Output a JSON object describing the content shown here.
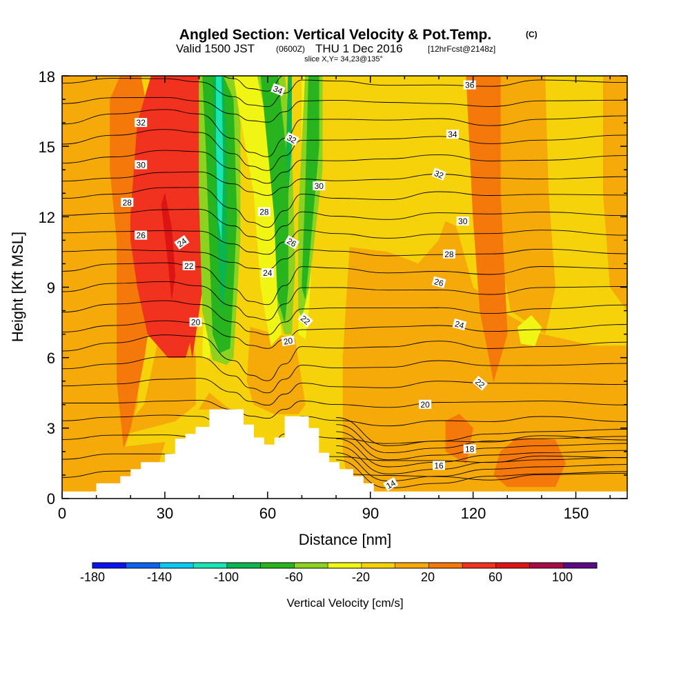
{
  "header": {
    "title": "Angled Section: Vertical Velocity & Pot.Temp.",
    "title_unit": "(C)",
    "valid_prefix": "Valid 1500 JST",
    "valid_utc": "(0600Z)",
    "valid_date": "THU 1 Dec 2016",
    "forecast": "[12hrFcst@2148z]",
    "slice": "slice X,Y= 34,23@135°"
  },
  "chart_data": {
    "type": "heatmap",
    "xlabel": "Distance [nm]",
    "ylabel": "Height [Kft MSL]",
    "xlim": [
      0,
      165
    ],
    "ylim": [
      0,
      18
    ],
    "x_ticks": [
      "0",
      "30",
      "60",
      "90",
      "120",
      "150"
    ],
    "y_ticks": [
      "0",
      "3",
      "6",
      "9",
      "12",
      "15",
      "18"
    ],
    "colorbar": {
      "title": "Vertical Velocity [cm/s]",
      "range": [
        -180,
        120
      ],
      "step": 20,
      "labels": [
        "-180",
        "-140",
        "-100",
        "-60",
        "-20",
        "20",
        "60",
        "100"
      ],
      "colors": [
        "#0a14f0",
        "#0a64f0",
        "#0ac8f0",
        "#19e6b4",
        "#0ab450",
        "#28b41e",
        "#8cd21e",
        "#f0f514",
        "#f5d20a",
        "#f5aa0a",
        "#f5780a",
        "#f0321e",
        "#dc1414",
        "#aa0a46",
        "#5a0a82"
      ]
    },
    "terrain": [
      [
        0,
        0.3
      ],
      [
        10,
        0.3
      ],
      [
        10,
        0.65
      ],
      [
        17,
        0.65
      ],
      [
        17,
        0.95
      ],
      [
        20,
        0.95
      ],
      [
        20,
        1.25
      ],
      [
        23,
        1.25
      ],
      [
        23,
        1.55
      ],
      [
        30,
        1.55
      ],
      [
        30,
        1.9
      ],
      [
        33,
        1.9
      ],
      [
        33,
        2.55
      ],
      [
        36,
        2.55
      ],
      [
        36,
        2.75
      ],
      [
        39,
        2.75
      ],
      [
        39,
        3.05
      ],
      [
        43,
        3.05
      ],
      [
        43,
        3.8
      ],
      [
        53,
        3.8
      ],
      [
        53,
        3.15
      ],
      [
        56,
        3.15
      ],
      [
        56,
        2.6
      ],
      [
        59,
        2.6
      ],
      [
        59,
        2.3
      ],
      [
        62,
        2.3
      ],
      [
        62,
        2.6
      ],
      [
        65,
        2.6
      ],
      [
        65,
        3.5
      ],
      [
        72,
        3.5
      ],
      [
        72,
        3.0
      ],
      [
        75,
        3.0
      ],
      [
        75,
        1.95
      ],
      [
        78,
        1.95
      ],
      [
        78,
        1.55
      ],
      [
        81,
        1.55
      ],
      [
        81,
        1.25
      ],
      [
        85,
        1.25
      ],
      [
        85,
        0.95
      ],
      [
        88,
        0.95
      ],
      [
        88,
        0.65
      ],
      [
        91,
        0.65
      ],
      [
        91,
        0.3
      ],
      [
        165,
        0.3
      ]
    ],
    "theta_contour_labels": [
      {
        "text": "34",
        "x": 63,
        "y": 17.4,
        "angle": 22
      },
      {
        "text": "36",
        "x": 119,
        "y": 17.6,
        "angle": 0
      },
      {
        "text": "32",
        "x": 23,
        "y": 16.0,
        "angle": 0
      },
      {
        "text": "32",
        "x": 67,
        "y": 15.3,
        "angle": 28
      },
      {
        "text": "34",
        "x": 114,
        "y": 15.5,
        "angle": 0
      },
      {
        "text": "30",
        "x": 23,
        "y": 14.2,
        "angle": 0
      },
      {
        "text": "32",
        "x": 110,
        "y": 13.8,
        "angle": 22
      },
      {
        "text": "30",
        "x": 75,
        "y": 13.3,
        "angle": 0
      },
      {
        "text": "28",
        "x": 19,
        "y": 12.6,
        "angle": 0
      },
      {
        "text": "28",
        "x": 59,
        "y": 12.2,
        "angle": 0
      },
      {
        "text": "30",
        "x": 117,
        "y": 11.8,
        "angle": 0
      },
      {
        "text": "26",
        "x": 23,
        "y": 11.2,
        "angle": 0
      },
      {
        "text": "24",
        "x": 35,
        "y": 10.9,
        "angle": -35
      },
      {
        "text": "26",
        "x": 67,
        "y": 10.9,
        "angle": 30
      },
      {
        "text": "28",
        "x": 113,
        "y": 10.4,
        "angle": 0
      },
      {
        "text": "22",
        "x": 37,
        "y": 9.9,
        "angle": 0
      },
      {
        "text": "24",
        "x": 60,
        "y": 9.6,
        "angle": 0
      },
      {
        "text": "26",
        "x": 110,
        "y": 9.2,
        "angle": 15
      },
      {
        "text": "22",
        "x": 71,
        "y": 7.6,
        "angle": 40
      },
      {
        "text": "20",
        "x": 39,
        "y": 7.5,
        "angle": 0
      },
      {
        "text": "24",
        "x": 116,
        "y": 7.4,
        "angle": 15
      },
      {
        "text": "20",
        "x": 66,
        "y": 6.7,
        "angle": -10
      },
      {
        "text": "22",
        "x": 122,
        "y": 4.9,
        "angle": 40
      },
      {
        "text": "20",
        "x": 106,
        "y": 4.0,
        "angle": 0
      },
      {
        "text": "18",
        "x": 119,
        "y": 2.1,
        "angle": 0
      },
      {
        "text": "16",
        "x": 110,
        "y": 1.4,
        "angle": 0
      },
      {
        "text": "14",
        "x": 96,
        "y": 0.6,
        "angle": -30
      }
    ]
  }
}
